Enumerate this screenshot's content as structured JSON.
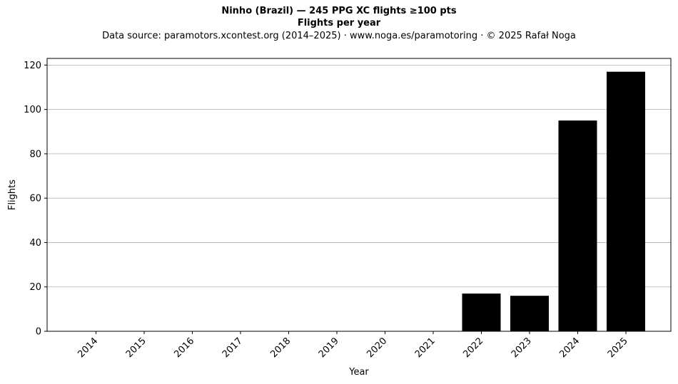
{
  "chart_data": {
    "type": "bar",
    "title": "Ninho (Brazil)  —  245 PPG XC flights ≥100 pts",
    "subtitle": "Flights per year",
    "source": "Data source: paramotors.xcontest.org (2014–2025)  ·  www.noga.es/paramotoring  ·  © 2025 Rafał Noga",
    "xlabel": "Year",
    "ylabel": "Flights",
    "categories": [
      "2014",
      "2015",
      "2016",
      "2017",
      "2018",
      "2019",
      "2020",
      "2021",
      "2022",
      "2023",
      "2024",
      "2025"
    ],
    "values": [
      0,
      0,
      0,
      0,
      0,
      0,
      0,
      0,
      17,
      16,
      95,
      117
    ],
    "ylim": [
      0,
      123
    ],
    "yticks": [
      0,
      20,
      40,
      60,
      80,
      100,
      120
    ],
    "grid": "y",
    "bar_color": "#000000",
    "grid_color": "#b0b0b0"
  }
}
